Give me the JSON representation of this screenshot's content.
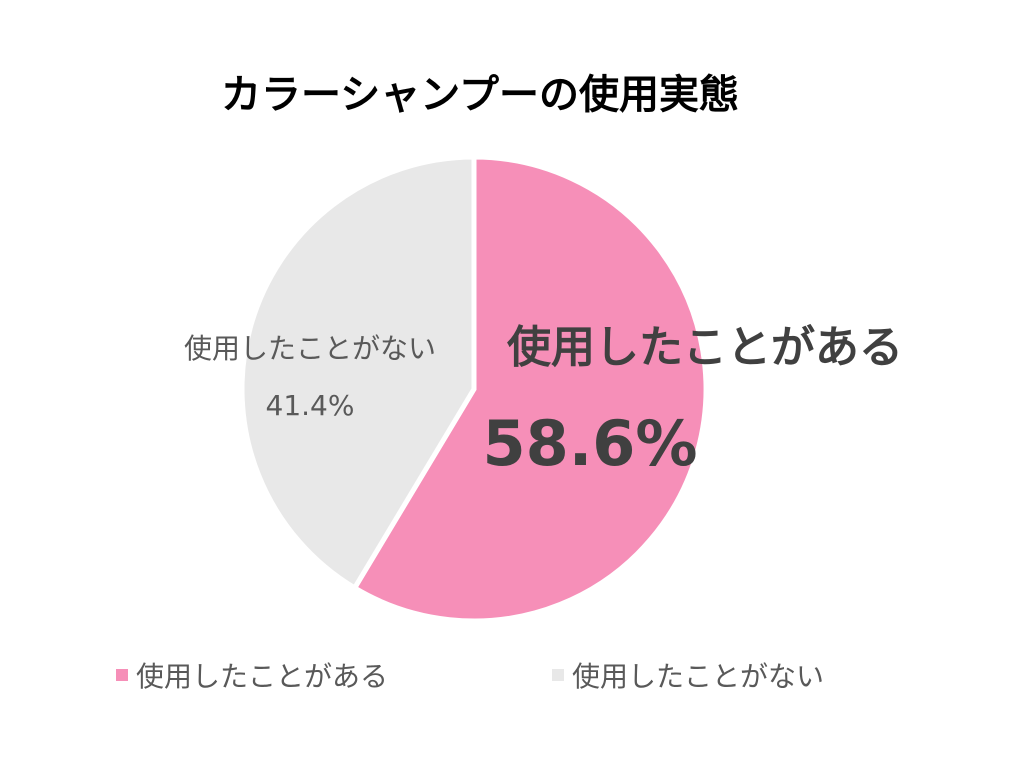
{
  "chart_data": {
    "type": "pie",
    "title": "カラーシャンプーの使用実態",
    "categories": [
      "使用したことがある",
      "使用したことがない"
    ],
    "values": [
      58.6,
      41.4
    ],
    "data_labels": [
      "58.6%",
      "41.4%"
    ],
    "colors": [
      "#F68FB8",
      "#E8E8E8"
    ],
    "legend_placement": "bottom",
    "start_angle": "top, clockwise"
  }
}
